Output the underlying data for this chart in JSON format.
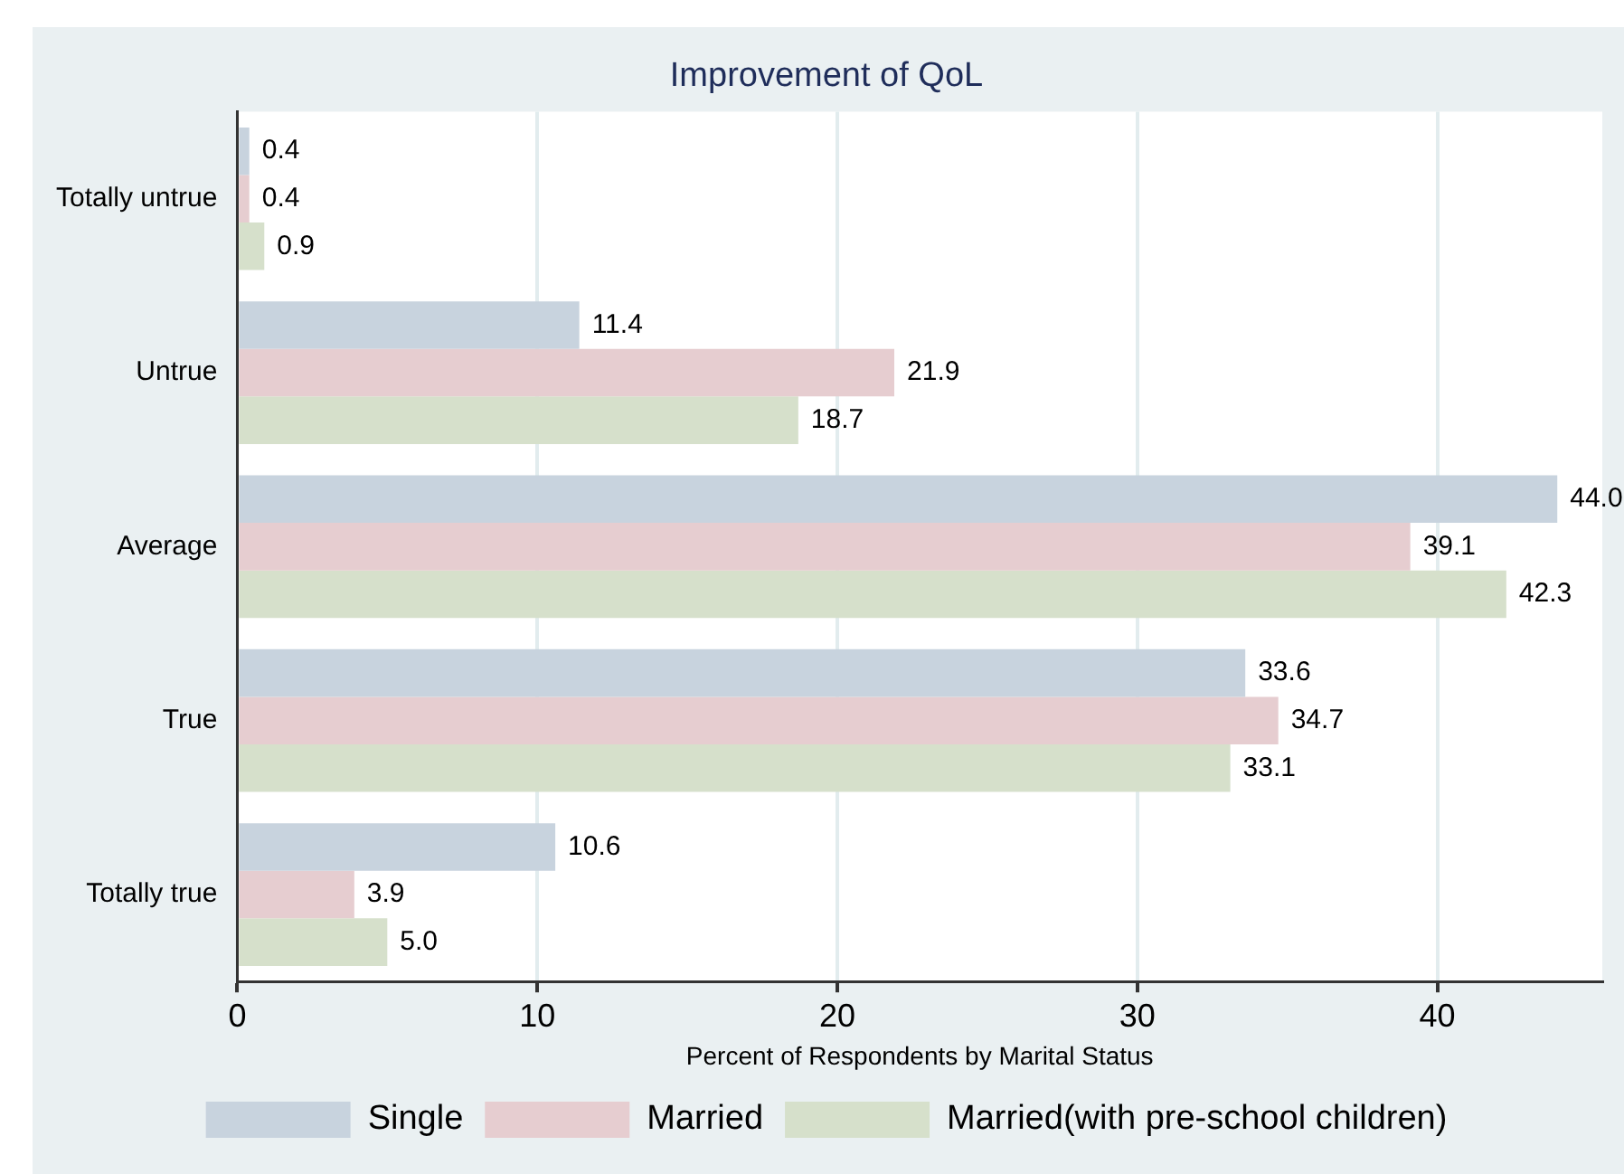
{
  "chart_data": {
    "type": "bar",
    "orientation": "horizontal",
    "title": "Improvement of QoL",
    "xlabel": "Percent of Respondents by Marital Status",
    "categories": [
      "Totally untrue",
      "Untrue",
      "Average",
      "True",
      "Totally true"
    ],
    "series": [
      {
        "name": "Single",
        "color": "#c8d3de",
        "values": [
          0.4,
          11.4,
          44.0,
          33.6,
          10.6
        ],
        "value_labels": [
          "0.4",
          "11.4",
          "44.0",
          "33.6",
          "10.6"
        ]
      },
      {
        "name": "Married",
        "color": "#e6cdd0",
        "values": [
          0.4,
          21.9,
          39.1,
          34.7,
          3.9
        ],
        "value_labels": [
          "0.4",
          "21.9",
          "39.1",
          "34.7",
          "3.9"
        ]
      },
      {
        "name": "Married(with pre-school children)",
        "color": "#d6e0cb",
        "values": [
          0.9,
          18.7,
          42.3,
          33.1,
          5.0
        ],
        "value_labels": [
          "0.9",
          "18.7",
          "42.3",
          "33.1",
          "5.0"
        ]
      }
    ],
    "xlim": [
      0,
      45.5
    ],
    "xticks": [
      0,
      10,
      20,
      30,
      40
    ],
    "grid": "x",
    "legend": "bottom"
  }
}
